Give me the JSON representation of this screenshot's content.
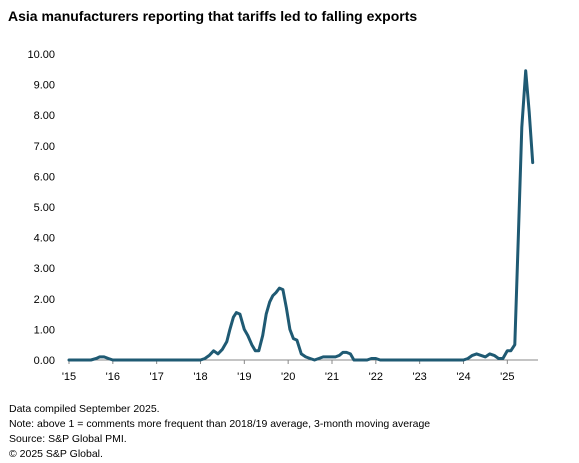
{
  "title": "Asia manufacturers reporting that tariffs led to falling exports",
  "notes": [
    "Data compiled September 2025.",
    "Note: above 1 = comments more frequent than 2018/19 average, 3-month moving average",
    "Source: S&P Global PMI.",
    "© 2025 S&P Global."
  ],
  "chart_data": {
    "type": "line",
    "xlabel": "",
    "ylabel": "",
    "ylim": [
      0,
      10
    ],
    "xlim": [
      2015.0,
      2025.7
    ],
    "y_ticks": [
      "0.00",
      "1.00",
      "2.00",
      "3.00",
      "4.00",
      "5.00",
      "6.00",
      "7.00",
      "8.00",
      "9.00",
      "10.00"
    ],
    "x_ticks": [
      {
        "value": 2015,
        "label": "'15"
      },
      {
        "value": 2016,
        "label": "'16"
      },
      {
        "value": 2017,
        "label": "'17"
      },
      {
        "value": 2018,
        "label": "'18"
      },
      {
        "value": 2019,
        "label": "'19"
      },
      {
        "value": 2020,
        "label": "'20"
      },
      {
        "value": 2021,
        "label": "'21"
      },
      {
        "value": 2022,
        "label": "'22"
      },
      {
        "value": 2023,
        "label": "'23"
      },
      {
        "value": 2024,
        "label": "'24"
      },
      {
        "value": 2025,
        "label": "'25"
      }
    ],
    "grid": false,
    "line_color": "#1f5a73",
    "series": [
      {
        "x": [
          2015.0,
          2015.5,
          2015.62,
          2015.7,
          2015.8,
          2015.9,
          2016.0,
          2016.5,
          2017.0,
          2017.5,
          2018.0,
          2018.1,
          2018.2,
          2018.3,
          2018.4,
          2018.5,
          2018.6,
          2018.67,
          2018.75,
          2018.82,
          2018.9,
          2019.0,
          2019.08,
          2019.17,
          2019.25,
          2019.33,
          2019.42,
          2019.5,
          2019.58,
          2019.65,
          2019.72,
          2019.8,
          2019.88,
          2019.96,
          2020.04,
          2020.12,
          2020.2,
          2020.3,
          2020.4,
          2020.5,
          2020.6,
          2020.7,
          2020.8,
          2020.9,
          2021.0,
          2021.08,
          2021.17,
          2021.25,
          2021.33,
          2021.42,
          2021.5,
          2021.8,
          2021.9,
          2022.0,
          2022.1,
          2022.2,
          2022.5,
          2023.0,
          2023.5,
          2024.0,
          2024.1,
          2024.2,
          2024.3,
          2024.4,
          2024.5,
          2024.6,
          2024.7,
          2024.8,
          2024.9,
          2025.0,
          2025.08,
          2025.17,
          2025.25,
          2025.33,
          2025.42,
          2025.5,
          2025.58
        ],
        "y": [
          0,
          0,
          0.05,
          0.1,
          0.1,
          0.05,
          0,
          0,
          0,
          0,
          0,
          0.05,
          0.15,
          0.3,
          0.2,
          0.35,
          0.6,
          1.0,
          1.4,
          1.55,
          1.5,
          1.0,
          0.8,
          0.5,
          0.3,
          0.3,
          0.8,
          1.5,
          1.9,
          2.1,
          2.2,
          2.35,
          2.3,
          1.7,
          1.0,
          0.7,
          0.65,
          0.2,
          0.1,
          0.05,
          0,
          0.05,
          0.1,
          0.1,
          0.1,
          0.1,
          0.15,
          0.25,
          0.25,
          0.2,
          0,
          0,
          0.05,
          0.05,
          0,
          0,
          0,
          0,
          0,
          0,
          0.05,
          0.15,
          0.2,
          0.15,
          0.1,
          0.2,
          0.15,
          0.05,
          0.05,
          0.3,
          0.3,
          0.5,
          4.0,
          7.6,
          9.45,
          8.1,
          6.45
        ]
      }
    ]
  }
}
